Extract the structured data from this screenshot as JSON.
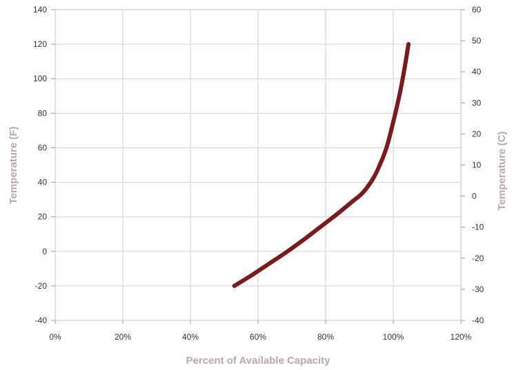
{
  "chart_data": {
    "type": "line",
    "title": "",
    "xlabel": "Percent of Available Capacity",
    "ylabel": "Temperature (F)",
    "y2label": "Temperature (C)",
    "xlim": [
      0,
      120
    ],
    "ylim": [
      -40,
      140
    ],
    "y2lim": [
      -40,
      60
    ],
    "x_ticks": [
      0,
      20,
      40,
      60,
      80,
      100,
      120
    ],
    "x_tick_labels": [
      "0%",
      "20%",
      "40%",
      "60%",
      "80%",
      "100%",
      "120%"
    ],
    "y_ticks": [
      -40,
      -20,
      0,
      20,
      40,
      60,
      80,
      100,
      120,
      140
    ],
    "y_tick_labels": [
      "-40",
      "-20",
      "0",
      "20",
      "40",
      "60",
      "80",
      "100",
      "120",
      "140"
    ],
    "y2_ticks": [
      -40,
      -30,
      -20,
      -10,
      0,
      10,
      20,
      30,
      40,
      50,
      60
    ],
    "y2_tick_labels": [
      "-40",
      "-30",
      "-20",
      "-10",
      "0",
      "10",
      "20",
      "30",
      "40",
      "50",
      "60"
    ],
    "grid": true,
    "series": [
      {
        "color": "#7b1a1a",
        "x": [
          53,
          58,
          63,
          68,
          73,
          78,
          83,
          88,
          91,
          94,
          96,
          98,
          100,
          102,
          103.5,
          104.5
        ],
        "y": [
          -20,
          -14,
          -7.5,
          -1,
          6,
          13.5,
          21,
          29,
          34,
          42,
          50,
          60,
          75,
          92,
          108,
          120
        ]
      }
    ]
  }
}
